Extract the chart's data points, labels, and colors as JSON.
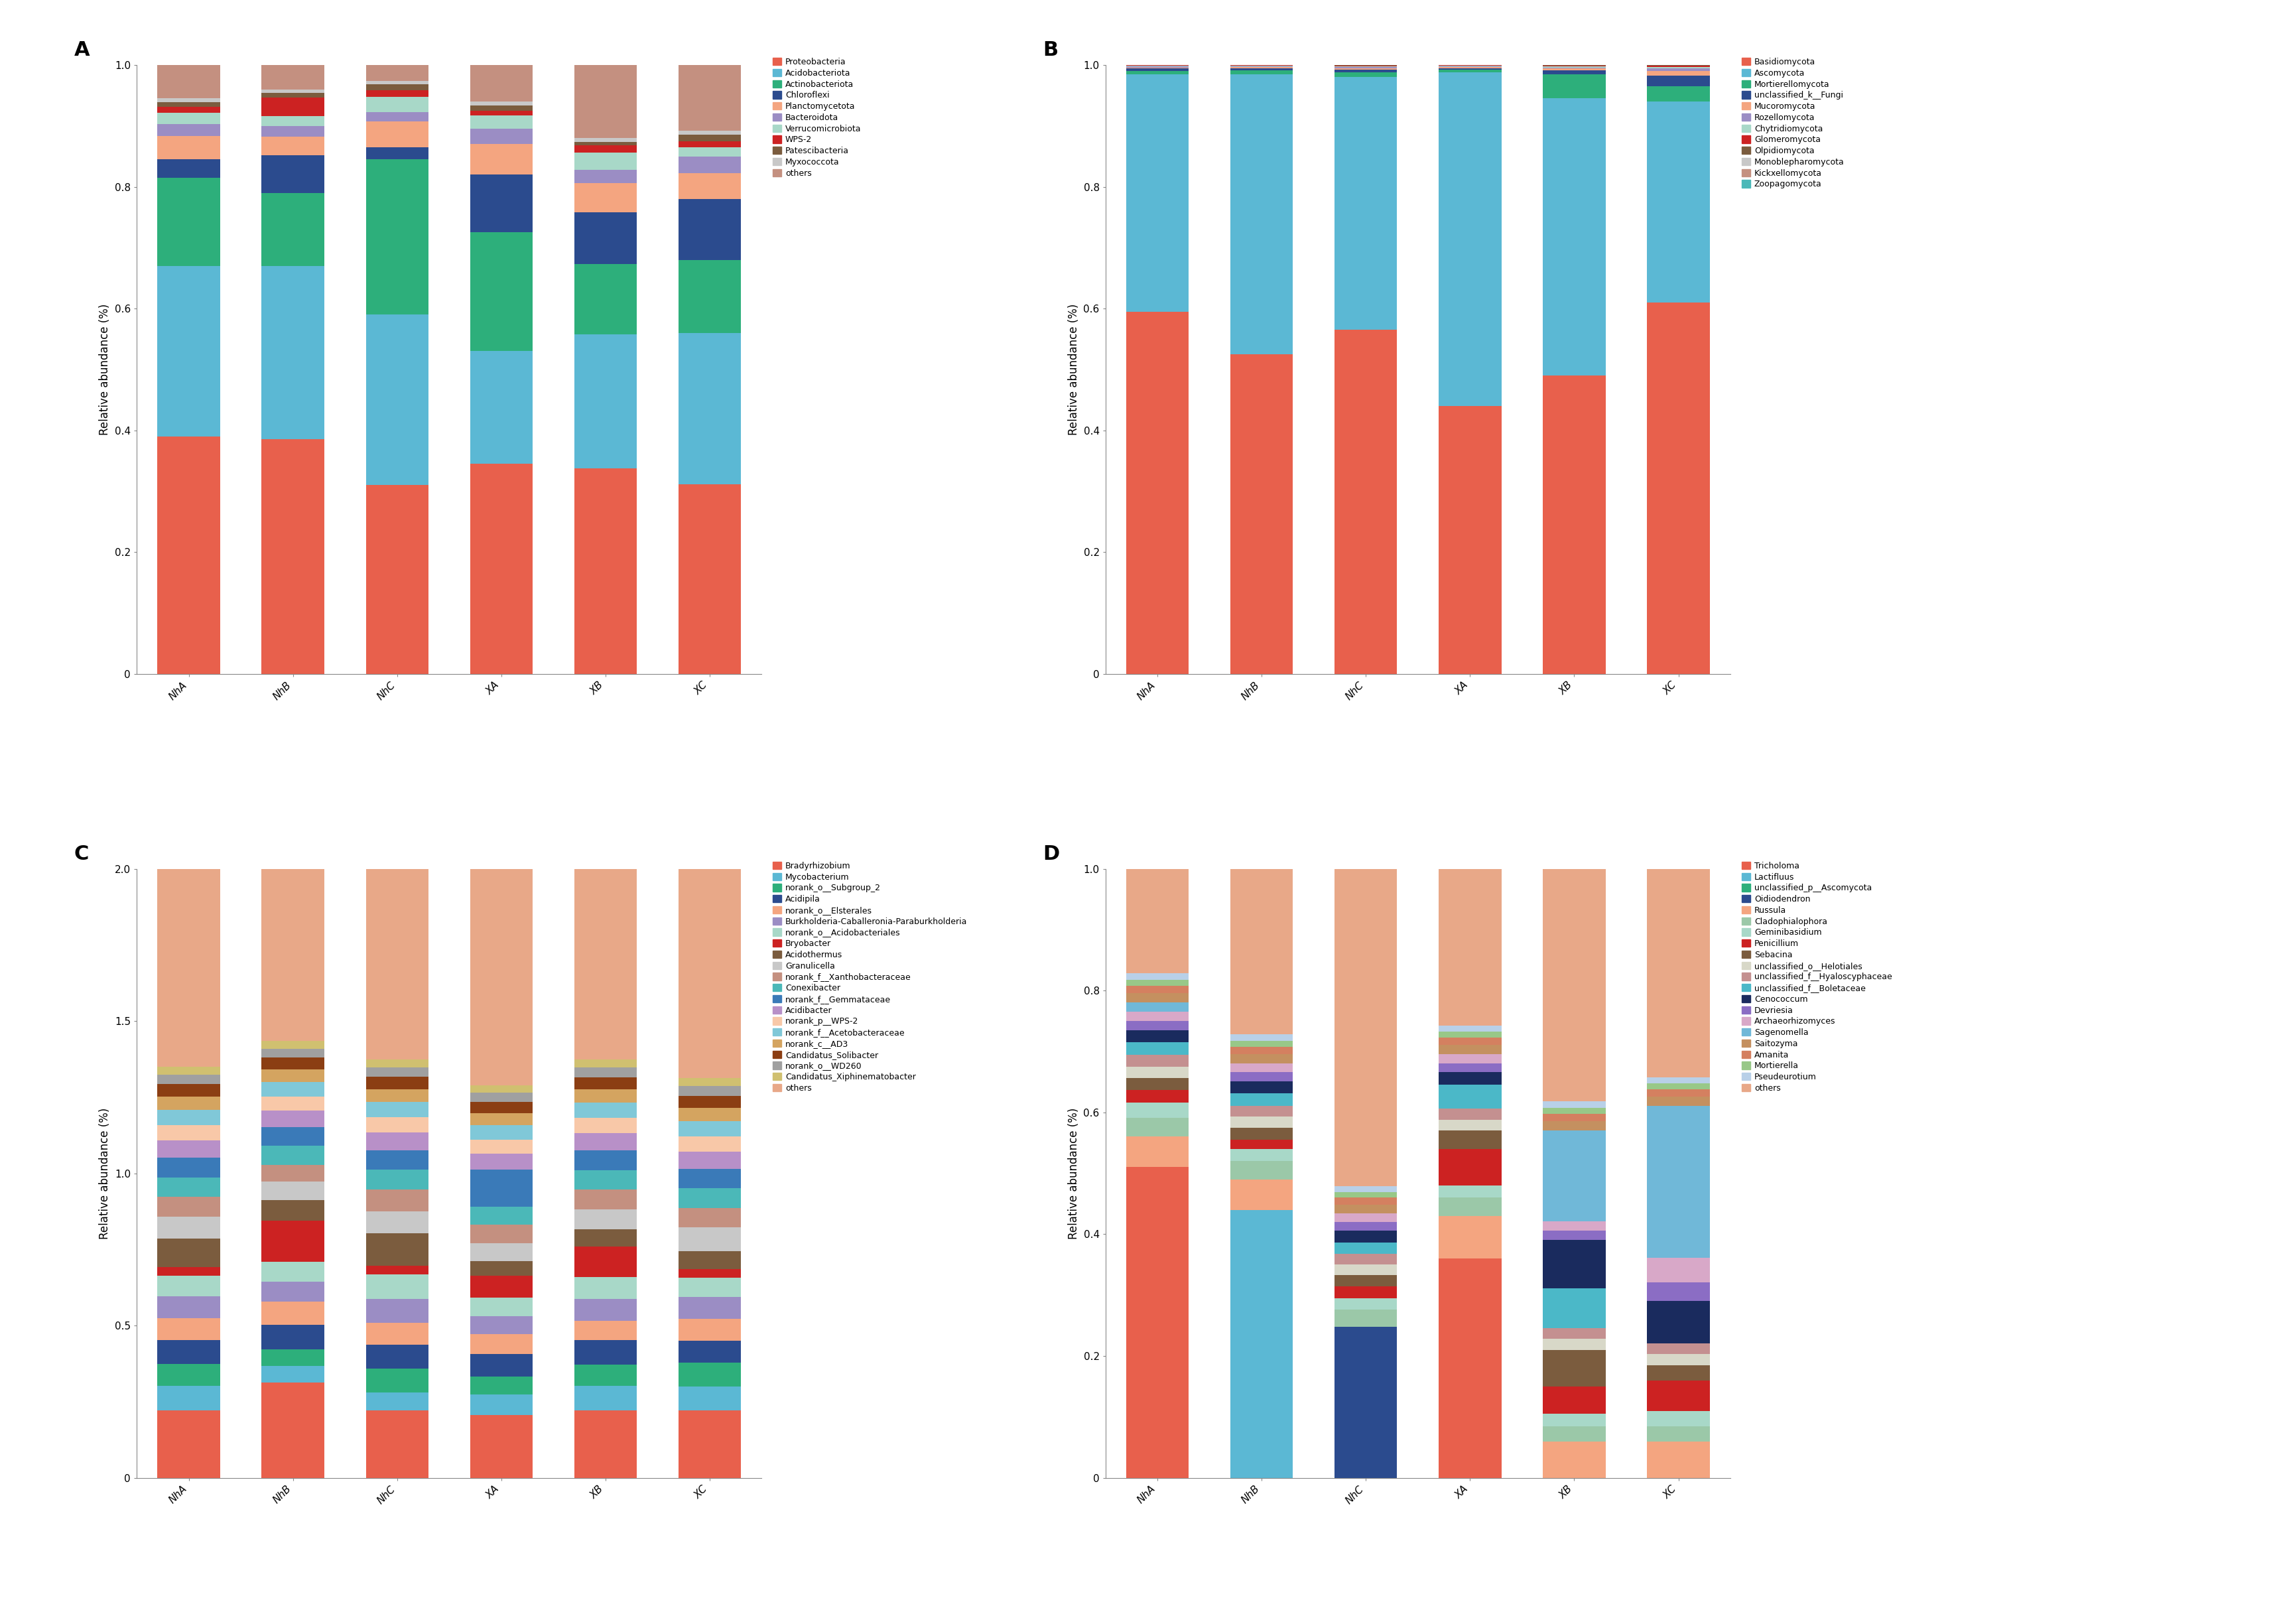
{
  "categories": [
    "NhA",
    "NhB",
    "NhC",
    "XA",
    "XB",
    "XC"
  ],
  "A_labels": [
    "Proteobacteria",
    "Acidobacteriota",
    "Actinobacteriota",
    "Chloroflexi",
    "Planctomycetota",
    "Bacteroidota",
    "Verrucomicrobiota",
    "WPS-2",
    "Patescibacteria",
    "Myxococcota",
    "others"
  ],
  "A_colors": [
    "#E8604C",
    "#5BB8D4",
    "#2DAF7B",
    "#2B4B8E",
    "#F4A580",
    "#9B8DC4",
    "#A8D8C8",
    "#CC2222",
    "#7B5C3E",
    "#C8C8C8",
    "#C49080"
  ],
  "A_data": {
    "Proteobacteria": [
      0.39,
      0.385,
      0.31,
      0.345,
      0.338,
      0.312
    ],
    "Acidobacteriota": [
      0.28,
      0.285,
      0.28,
      0.185,
      0.22,
      0.248
    ],
    "Actinobacteriota": [
      0.145,
      0.12,
      0.255,
      0.195,
      0.115,
      0.12
    ],
    "Chloroflexi": [
      0.03,
      0.062,
      0.02,
      0.095,
      0.085,
      0.1
    ],
    "Planctomycetota": [
      0.038,
      0.03,
      0.042,
      0.05,
      0.048,
      0.042
    ],
    "Bacteroidota": [
      0.02,
      0.018,
      0.016,
      0.025,
      0.022,
      0.028
    ],
    "Verrucomicrobiota": [
      0.018,
      0.016,
      0.025,
      0.022,
      0.028,
      0.015
    ],
    "WPS-2": [
      0.01,
      0.03,
      0.01,
      0.008,
      0.012,
      0.01
    ],
    "Patescibacteria": [
      0.008,
      0.008,
      0.01,
      0.008,
      0.006,
      0.01
    ],
    "Myxococcota": [
      0.006,
      0.006,
      0.006,
      0.007,
      0.006,
      0.007
    ],
    "others": [
      0.055,
      0.04,
      0.026,
      0.06,
      0.12,
      0.108
    ]
  },
  "B_labels": [
    "Basidiomycota",
    "Ascomycota",
    "Mortierellomycota",
    "unclassified_k__Fungi",
    "Mucoromycota",
    "Rozellomycota",
    "Chytridiomycota",
    "Glomeromycota",
    "Olpidiomycota",
    "Monoblepharomycota",
    "Kickxellomycota",
    "Zoopagomycota"
  ],
  "B_colors": [
    "#E8604C",
    "#5BB8D4",
    "#2DAF7B",
    "#2B4B8E",
    "#F4A580",
    "#9B8DC4",
    "#A8D8C8",
    "#CC2222",
    "#7B5C3E",
    "#C8C8C8",
    "#C49080",
    "#4BB8B8"
  ],
  "B_data": {
    "Basidiomycota": [
      0.595,
      0.525,
      0.565,
      0.44,
      0.49,
      0.61
    ],
    "Ascomycota": [
      0.39,
      0.46,
      0.415,
      0.548,
      0.455,
      0.33
    ],
    "Mortierellomycota": [
      0.005,
      0.006,
      0.008,
      0.004,
      0.04,
      0.025
    ],
    "unclassified_k__Fungi": [
      0.004,
      0.004,
      0.004,
      0.003,
      0.006,
      0.018
    ],
    "Mucoromycota": [
      0.002,
      0.002,
      0.003,
      0.002,
      0.003,
      0.007
    ],
    "Rozellomycota": [
      0.002,
      0.001,
      0.002,
      0.001,
      0.002,
      0.004
    ],
    "Chytridiomycota": [
      0.001,
      0.001,
      0.001,
      0.001,
      0.002,
      0.003
    ],
    "Glomeromycota": [
      0.001,
      0.001,
      0.001,
      0.001,
      0.001,
      0.002
    ],
    "Olpidiomycota": [
      0.0,
      0.0,
      0.001,
      0.0,
      0.001,
      0.001
    ],
    "Monoblepharomycota": [
      0.0,
      0.0,
      0.0,
      0.0,
      0.0,
      0.0
    ],
    "Kickxellomycota": [
      0.0,
      0.0,
      0.0,
      0.0,
      0.0,
      0.0
    ],
    "Zoopagomycota": [
      0.0,
      0.0,
      0.0,
      0.0,
      0.0,
      0.0
    ]
  },
  "C_labels": [
    "Bradyrhizobium",
    "Mycobacterium",
    "norank_o__Subgroup_2",
    "Acidipila",
    "norank_o__Elsterales",
    "Burkholderia-Caballeronia-Paraburkholderia",
    "norank_o__Acidobacteriales",
    "Bryobacter",
    "Acidothermus",
    "Granulicella",
    "norank_f__Xanthobacteraceae",
    "Conexibacter",
    "norank_f__Gemmataceae",
    "Acidibacter",
    "norank_p__WPS-2",
    "norank_f__Acetobacteraceae",
    "norank_c__AD3",
    "Candidatus_Solibacter",
    "norank_o__WD260",
    "Candidatus_Xiphinematobacter",
    "others"
  ],
  "C_colors": [
    "#E8604C",
    "#5BB8D4",
    "#2DAF7B",
    "#2B4B8E",
    "#F4A580",
    "#9B8DC4",
    "#A8D8C8",
    "#CC2222",
    "#7B5C3E",
    "#C8C8C8",
    "#C49080",
    "#4BB8B8",
    "#3A7AB8",
    "#B890C8",
    "#F8C8A8",
    "#80C8D8",
    "#D4A460",
    "#8B3E13",
    "#A0A0A0",
    "#D0C070",
    "#E8A888"
  ],
  "C_data": {
    "Bradyrhizobium": [
      0.155,
      0.23,
      0.155,
      0.155,
      0.155,
      0.155
    ],
    "Mycobacterium": [
      0.055,
      0.04,
      0.04,
      0.05,
      0.055,
      0.055
    ],
    "norank_o__Subgroup_2": [
      0.05,
      0.04,
      0.055,
      0.045,
      0.05,
      0.055
    ],
    "Acidipila": [
      0.055,
      0.06,
      0.055,
      0.055,
      0.055,
      0.05
    ],
    "norank_o__Elsterales": [
      0.05,
      0.055,
      0.05,
      0.048,
      0.045,
      0.05
    ],
    "Burkholderia-Caballeronia-Paraburkholderia": [
      0.05,
      0.048,
      0.055,
      0.045,
      0.05,
      0.05
    ],
    "norank_o__Acidobacteriales": [
      0.048,
      0.048,
      0.055,
      0.045,
      0.05,
      0.045
    ],
    "Bryobacter": [
      0.02,
      0.1,
      0.02,
      0.055,
      0.07,
      0.02
    ],
    "Acidothermus": [
      0.065,
      0.05,
      0.075,
      0.035,
      0.04,
      0.04
    ],
    "Granulicella": [
      0.05,
      0.045,
      0.05,
      0.045,
      0.045,
      0.055
    ],
    "norank_f__Xanthobacteraceae": [
      0.045,
      0.04,
      0.05,
      0.045,
      0.045,
      0.045
    ],
    "Conexibacter": [
      0.045,
      0.045,
      0.045,
      0.045,
      0.045,
      0.045
    ],
    "norank_f__Gemmataceae": [
      0.045,
      0.045,
      0.045,
      0.09,
      0.045,
      0.045
    ],
    "Acidibacter": [
      0.04,
      0.04,
      0.04,
      0.04,
      0.04,
      0.04
    ],
    "norank_p__WPS-2": [
      0.035,
      0.035,
      0.035,
      0.035,
      0.035,
      0.035
    ],
    "norank_f__Acetobacteraceae": [
      0.035,
      0.035,
      0.035,
      0.035,
      0.035,
      0.035
    ],
    "norank_c__AD3": [
      0.03,
      0.03,
      0.03,
      0.03,
      0.03,
      0.03
    ],
    "Candidatus_Solibacter": [
      0.028,
      0.028,
      0.028,
      0.028,
      0.028,
      0.028
    ],
    "norank_o__WD260": [
      0.022,
      0.022,
      0.022,
      0.022,
      0.022,
      0.022
    ],
    "Candidatus_Xiphinematobacter": [
      0.018,
      0.018,
      0.018,
      0.018,
      0.018,
      0.018
    ],
    "others": [
      0.453,
      0.416,
      0.436,
      0.533,
      0.437,
      0.481
    ]
  },
  "D_labels": [
    "Tricholoma",
    "Lactifluus",
    "unclassified_p__Ascomycota",
    "Oidiodendron",
    "Russula",
    "Cladophialophora",
    "Geminibasidium",
    "Penicillium",
    "Sebacina",
    "unclassified_o__Helotiales",
    "unclassified_f__Hyaloscyphaceae",
    "unclassified_f__Boletaceae",
    "Cenococcum",
    "Devriesia",
    "Archaeorhizomyces",
    "Sagenomella",
    "Saitozyma",
    "Amanita",
    "Mortierella",
    "Pseudeurotium",
    "others"
  ],
  "D_colors": [
    "#E8604C",
    "#5BB8D4",
    "#2DAF7B",
    "#2B4B8E",
    "#F4A580",
    "#9BC8A8",
    "#A8D8C8",
    "#CC2222",
    "#7B5C3E",
    "#D8D8C8",
    "#C49090",
    "#4BB8C8",
    "#1A2B5E",
    "#8B6DC4",
    "#D8A8C8",
    "#70B8D8",
    "#C49060",
    "#D48060",
    "#98C888",
    "#B8D0E8",
    "#E8A888"
  ],
  "D_data": {
    "Tricholoma": [
      0.505,
      0.0,
      0.0,
      0.36,
      0.0,
      0.0
    ],
    "Lactifluus": [
      0.0,
      0.44,
      0.0,
      0.0,
      0.0,
      0.0
    ],
    "unclassified_p__Ascomycota": [
      0.0,
      0.0,
      0.0,
      0.0,
      0.0,
      0.0
    ],
    "Oidiodendron": [
      0.0,
      0.0,
      0.26,
      0.0,
      0.0,
      0.0
    ],
    "Russula": [
      0.05,
      0.05,
      0.0,
      0.07,
      0.06,
      0.06
    ],
    "Cladophialophora": [
      0.03,
      0.03,
      0.03,
      0.03,
      0.025,
      0.025
    ],
    "Geminibasidium": [
      0.025,
      0.02,
      0.02,
      0.02,
      0.02,
      0.025
    ],
    "Penicillium": [
      0.02,
      0.015,
      0.02,
      0.06,
      0.045,
      0.05
    ],
    "Sebacina": [
      0.02,
      0.02,
      0.02,
      0.03,
      0.06,
      0.025
    ],
    "unclassified_o__Helotiales": [
      0.018,
      0.018,
      0.018,
      0.018,
      0.018,
      0.018
    ],
    "unclassified_f__Hyaloscyphaceae": [
      0.02,
      0.018,
      0.018,
      0.018,
      0.018,
      0.018
    ],
    "unclassified_f__Boletaceae": [
      0.02,
      0.02,
      0.02,
      0.04,
      0.065,
      0.0
    ],
    "Cenococcum": [
      0.02,
      0.02,
      0.02,
      0.02,
      0.08,
      0.07
    ],
    "Devriesia": [
      0.015,
      0.015,
      0.015,
      0.015,
      0.015,
      0.03
    ],
    "Archaeorhizomyces": [
      0.015,
      0.015,
      0.015,
      0.015,
      0.015,
      0.04
    ],
    "Sagenomella": [
      0.015,
      0.0,
      0.0,
      0.0,
      0.15,
      0.25
    ],
    "Saitozyma": [
      0.015,
      0.015,
      0.015,
      0.015,
      0.015,
      0.015
    ],
    "Amanita": [
      0.012,
      0.012,
      0.012,
      0.012,
      0.012,
      0.012
    ],
    "Mortierella": [
      0.01,
      0.01,
      0.01,
      0.01,
      0.01,
      0.01
    ],
    "Pseudeurotium": [
      0.01,
      0.01,
      0.01,
      0.01,
      0.01,
      0.01
    ],
    "others": [
      0.17,
      0.272,
      0.547,
      0.257,
      0.382,
      0.342
    ]
  }
}
